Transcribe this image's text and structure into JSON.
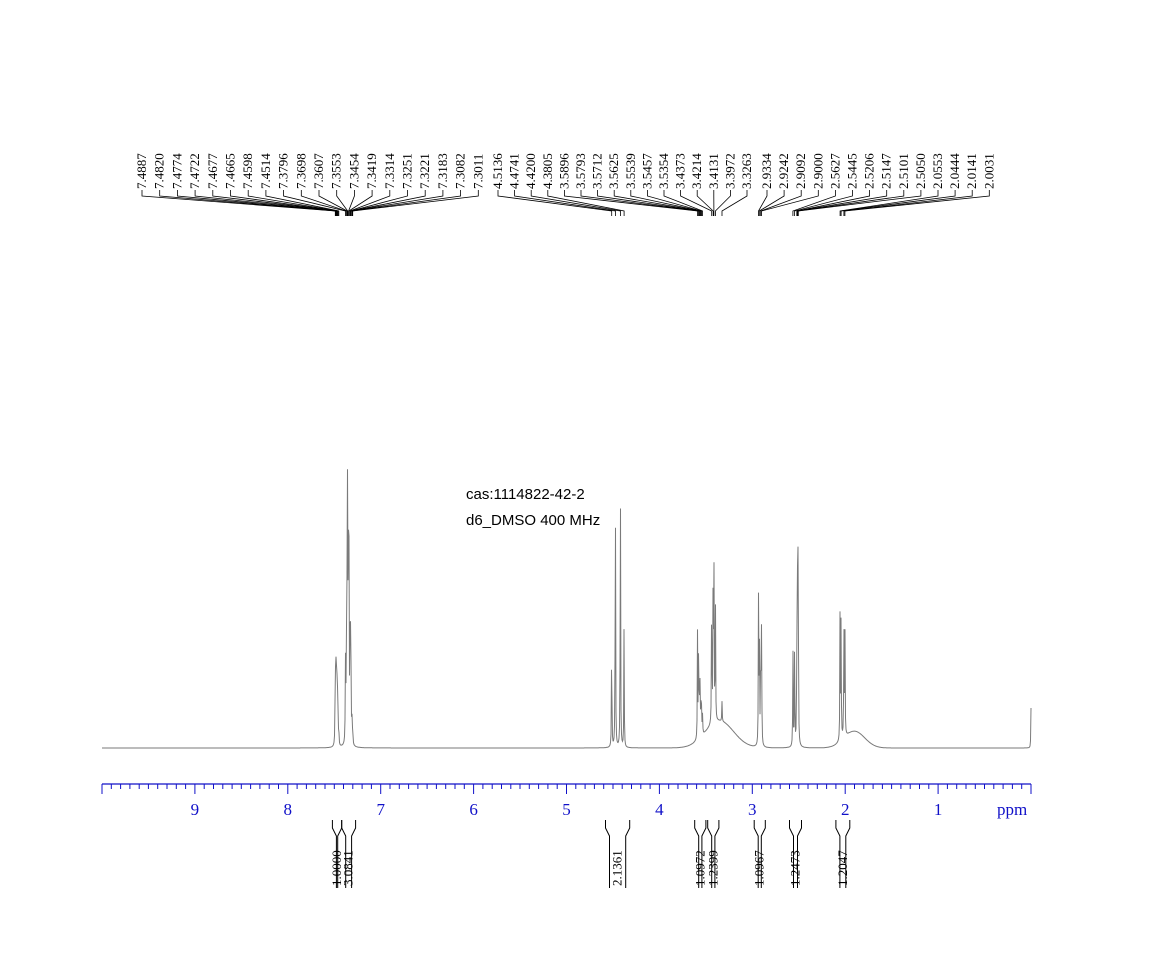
{
  "chart_data": {
    "type": "line",
    "title": "",
    "annotations": [
      "cas:1114822-42-2",
      "d6_DMSO  400 MHz"
    ],
    "xlabel": "ppm",
    "xlim": [
      10.0,
      0.0
    ],
    "x_reversed": true,
    "ticks": [
      "9",
      "8",
      "7",
      "6",
      "5",
      "4",
      "3",
      "2",
      "1"
    ],
    "grid": false,
    "peak_labels": [
      "7.4887",
      "7.4820",
      "7.4774",
      "7.4722",
      "7.4677",
      "7.4665",
      "7.4598",
      "7.4514",
      "7.3796",
      "7.3698",
      "7.3607",
      "7.3553",
      "7.3454",
      "7.3419",
      "7.3314",
      "7.3251",
      "7.3221",
      "7.3183",
      "7.3082",
      "7.3011",
      "4.5136",
      "4.4741",
      "4.4200",
      "4.3805",
      "3.5896",
      "3.5793",
      "3.5712",
      "3.5625",
      "3.5539",
      "3.5457",
      "3.5354",
      "3.4373",
      "3.4214",
      "3.4131",
      "3.3972",
      "3.3263",
      "2.9334",
      "2.9242",
      "2.9092",
      "2.9000",
      "2.5627",
      "2.5445",
      "2.5206",
      "2.5147",
      "2.5101",
      "2.5050",
      "2.0553",
      "2.0444",
      "2.0141",
      "2.0031"
    ],
    "integrals": [
      {
        "value": "1.0000",
        "from": 7.52,
        "to": 7.42
      },
      {
        "value": "3.0841",
        "from": 7.42,
        "to": 7.27
      },
      {
        "value": "2.1361",
        "from": 4.58,
        "to": 4.32
      },
      {
        "value": "1.0972",
        "from": 3.62,
        "to": 3.5
      },
      {
        "value": "1.2399",
        "from": 3.48,
        "to": 3.36
      },
      {
        "value": "1.0967",
        "from": 2.98,
        "to": 2.86
      },
      {
        "value": "1.2473",
        "from": 2.6,
        "to": 2.47
      },
      {
        "value": "1.2047",
        "from": 2.1,
        "to": 1.95
      }
    ],
    "peaks": [
      {
        "ppm": 7.4887,
        "h": 0.31
      },
      {
        "ppm": 7.482,
        "h": 0.18
      },
      {
        "ppm": 7.4774,
        "h": 0.2
      },
      {
        "ppm": 7.4722,
        "h": 0.15
      },
      {
        "ppm": 7.4677,
        "h": 0.1
      },
      {
        "ppm": 7.4665,
        "h": 0.12
      },
      {
        "ppm": 7.4598,
        "h": 0.08
      },
      {
        "ppm": 7.4514,
        "h": 0.06
      },
      {
        "ppm": 7.3796,
        "h": 0.25
      },
      {
        "ppm": 7.3698,
        "h": 0.35
      },
      {
        "ppm": 7.3607,
        "h": 0.6
      },
      {
        "ppm": 7.3553,
        "h": 0.95
      },
      {
        "ppm": 7.3454,
        "h": 0.55
      },
      {
        "ppm": 7.3419,
        "h": 0.45
      },
      {
        "ppm": 7.3314,
        "h": 0.3
      },
      {
        "ppm": 7.3251,
        "h": 0.22
      },
      {
        "ppm": 7.3221,
        "h": 0.18
      },
      {
        "ppm": 7.3183,
        "h": 0.12
      },
      {
        "ppm": 7.3082,
        "h": 0.07
      },
      {
        "ppm": 7.3011,
        "h": 0.05
      },
      {
        "ppm": 4.5136,
        "h": 0.38
      },
      {
        "ppm": 4.4741,
        "h": 0.91
      },
      {
        "ppm": 4.42,
        "h": 0.9
      },
      {
        "ppm": 4.3805,
        "h": 0.37
      },
      {
        "ppm": 3.5896,
        "h": 0.32
      },
      {
        "ppm": 3.5793,
        "h": 0.22
      },
      {
        "ppm": 3.5712,
        "h": 0.2
      },
      {
        "ppm": 3.5625,
        "h": 0.15
      },
      {
        "ppm": 3.5539,
        "h": 0.12
      },
      {
        "ppm": 3.5457,
        "h": 0.09
      },
      {
        "ppm": 3.5354,
        "h": 0.06
      },
      {
        "ppm": 3.4373,
        "h": 0.45
      },
      {
        "ppm": 3.4214,
        "h": 0.52
      },
      {
        "ppm": 3.4131,
        "h": 0.48
      },
      {
        "ppm": 3.3972,
        "h": 0.4
      },
      {
        "ppm": 3.3263,
        "h": 0.06
      },
      {
        "ppm": 2.9334,
        "h": 0.43
      },
      {
        "ppm": 2.9242,
        "h": 0.42
      },
      {
        "ppm": 2.9092,
        "h": 0.39
      },
      {
        "ppm": 2.9,
        "h": 0.38
      },
      {
        "ppm": 2.5627,
        "h": 0.31
      },
      {
        "ppm": 2.5445,
        "h": 0.34
      },
      {
        "ppm": 2.5206,
        "h": 0.35
      },
      {
        "ppm": 2.5147,
        "h": 0.3
      },
      {
        "ppm": 2.5101,
        "h": 0.65
      },
      {
        "ppm": 2.505,
        "h": 0.4
      },
      {
        "ppm": 2.0553,
        "h": 0.4
      },
      {
        "ppm": 2.0444,
        "h": 0.38
      },
      {
        "ppm": 2.0141,
        "h": 0.37
      },
      {
        "ppm": 2.0031,
        "h": 0.35
      },
      {
        "ppm": 0.0,
        "h": 0.12
      }
    ],
    "broad_humps": [
      {
        "ppm": 3.35,
        "h": 0.08,
        "width": 0.3
      },
      {
        "ppm": 1.9,
        "h": 0.05,
        "width": 0.22
      }
    ]
  }
}
